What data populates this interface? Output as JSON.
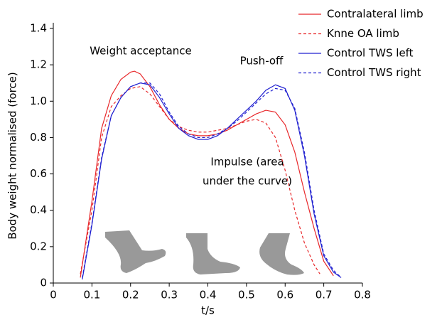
{
  "chart_data": {
    "type": "line",
    "x_label": "t/s",
    "y_label": "Body weight normalised (force)",
    "xlim": [
      0,
      0.8
    ],
    "ylim": [
      0,
      1.4
    ],
    "xticks": [
      0,
      0.1,
      0.2,
      0.3,
      0.4,
      0.5,
      0.6,
      0.7,
      0.8
    ],
    "yticks": [
      0,
      0.2,
      0.4,
      0.6,
      0.8,
      {
        "value": 1,
        "label": "1.0"
      },
      1.2,
      1.4
    ],
    "annotations": [
      "Weight acceptance",
      "Push-off",
      "Impulse (area",
      "under the curve)"
    ],
    "series": [
      {
        "name": "Contralateral limb",
        "color": "#e8282b",
        "dash": false,
        "x": [
          0.07,
          0.1,
          0.125,
          0.15,
          0.175,
          0.2,
          0.21,
          0.225,
          0.25,
          0.275,
          0.3,
          0.325,
          0.35,
          0.375,
          0.4,
          0.425,
          0.45,
          0.475,
          0.5,
          0.525,
          0.55,
          0.575,
          0.6,
          0.625,
          0.65,
          0.675,
          0.7,
          0.725
        ],
        "values": [
          0.03,
          0.45,
          0.85,
          1.03,
          1.12,
          1.16,
          1.165,
          1.15,
          1.08,
          0.98,
          0.9,
          0.85,
          0.82,
          0.81,
          0.81,
          0.82,
          0.84,
          0.87,
          0.9,
          0.93,
          0.95,
          0.94,
          0.87,
          0.72,
          0.5,
          0.3,
          0.12,
          0.04
        ]
      },
      {
        "name": "Knne OA limb",
        "color": "#e8282b",
        "dash": true,
        "x": [
          0.07,
          0.1,
          0.125,
          0.15,
          0.175,
          0.2,
          0.225,
          0.25,
          0.275,
          0.3,
          0.325,
          0.35,
          0.375,
          0.4,
          0.425,
          0.45,
          0.475,
          0.5,
          0.525,
          0.55,
          0.575,
          0.6,
          0.625,
          0.65,
          0.675,
          0.69
        ],
        "values": [
          0.05,
          0.4,
          0.8,
          0.97,
          1.03,
          1.07,
          1.08,
          1.04,
          0.97,
          0.9,
          0.86,
          0.84,
          0.83,
          0.83,
          0.84,
          0.85,
          0.87,
          0.89,
          0.9,
          0.88,
          0.8,
          0.62,
          0.4,
          0.22,
          0.1,
          0.05
        ]
      },
      {
        "name": "Control TWS left",
        "color": "#2020d0",
        "dash": false,
        "x": [
          0.075,
          0.1,
          0.125,
          0.15,
          0.175,
          0.2,
          0.225,
          0.25,
          0.275,
          0.3,
          0.325,
          0.35,
          0.375,
          0.4,
          0.425,
          0.45,
          0.475,
          0.5,
          0.525,
          0.55,
          0.575,
          0.6,
          0.625,
          0.65,
          0.675,
          0.7,
          0.725,
          0.745
        ],
        "values": [
          0.02,
          0.32,
          0.68,
          0.92,
          1.02,
          1.08,
          1.1,
          1.09,
          1.02,
          0.93,
          0.85,
          0.81,
          0.79,
          0.79,
          0.81,
          0.85,
          0.9,
          0.95,
          1.0,
          1.06,
          1.09,
          1.07,
          0.95,
          0.7,
          0.38,
          0.15,
          0.06,
          0.03
        ]
      },
      {
        "name": "Control TWS right",
        "color": "#2020d0",
        "dash": true,
        "x": [
          0.075,
          0.1,
          0.125,
          0.15,
          0.175,
          0.2,
          0.225,
          0.25,
          0.275,
          0.3,
          0.325,
          0.35,
          0.375,
          0.4,
          0.425,
          0.45,
          0.475,
          0.5,
          0.525,
          0.55,
          0.575,
          0.6,
          0.625,
          0.65,
          0.675,
          0.7,
          0.725,
          0.745
        ],
        "values": [
          0.03,
          0.33,
          0.69,
          0.92,
          1.02,
          1.08,
          1.1,
          1.1,
          1.04,
          0.94,
          0.86,
          0.82,
          0.8,
          0.8,
          0.82,
          0.85,
          0.89,
          0.94,
          0.99,
          1.04,
          1.07,
          1.06,
          0.96,
          0.72,
          0.4,
          0.16,
          0.07,
          0.03
        ]
      }
    ]
  }
}
